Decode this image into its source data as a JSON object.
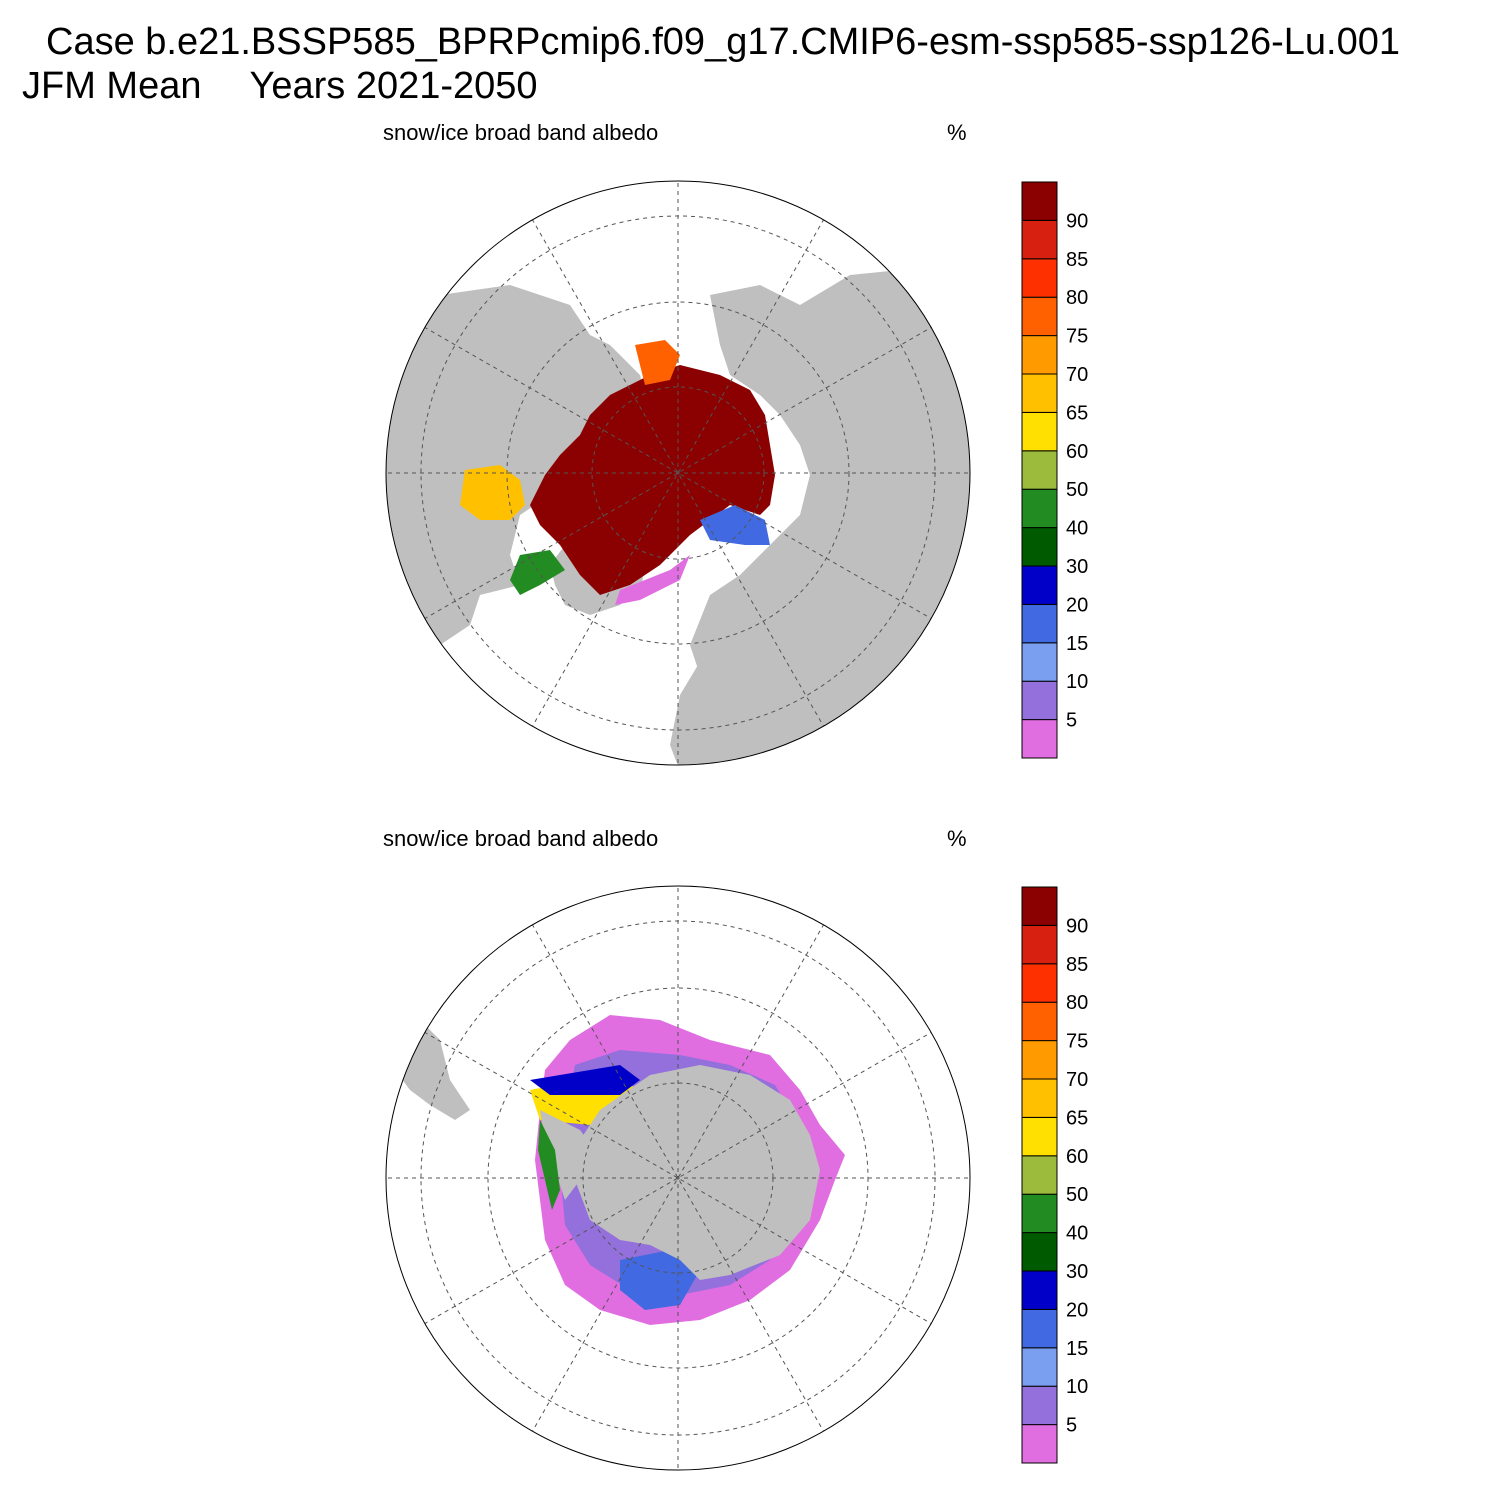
{
  "figure": {
    "case_line": "Case b.e21.BSSP585_BPRPcmip6.f09_g17.CMIP6-esm-ssp585-ssp126-Lu.001",
    "season": "JFM Mean",
    "years": "Years 2021-2050"
  },
  "panels": [
    {
      "title": "snow/ice broad band albedo",
      "units": "%",
      "hemisphere": "north"
    },
    {
      "title": "snow/ice broad band albedo",
      "units": "%",
      "hemisphere": "south"
    }
  ],
  "colorbar": {
    "labels": [
      "5",
      "10",
      "15",
      "20",
      "30",
      "40",
      "50",
      "60",
      "65",
      "70",
      "75",
      "80",
      "85",
      "90"
    ],
    "colors": [
      "#e06ee0",
      "#9370db",
      "#7b9ff0",
      "#4169e1",
      "#0000c8",
      "#005a00",
      "#228b22",
      "#9cbb3c",
      "#ffe000",
      "#ffc000",
      "#ff9a00",
      "#ff6000",
      "#ff3000",
      "#d82010",
      "#8b0000"
    ]
  },
  "colors": {
    "land": "#bfbfbf",
    "ocean": "#ffffff",
    "grid": "#555555"
  }
}
